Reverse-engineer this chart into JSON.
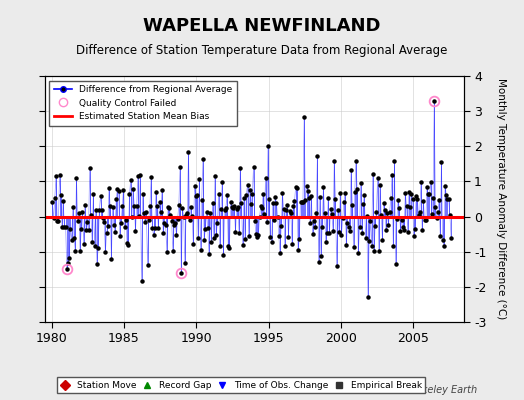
{
  "title": "WAPELLA NEWFINLAND",
  "subtitle": "Difference of Station Temperature Data from Regional Average",
  "ylabel": "Monthly Temperature Anomaly Difference (°C)",
  "xlabel_ticks": [
    1980,
    1985,
    1990,
    1995,
    2000,
    2005
  ],
  "xlim": [
    1979.5,
    2008.5
  ],
  "ylim": [
    -3,
    4
  ],
  "yticks": [
    -3,
    -2,
    -1,
    0,
    1,
    2,
    3,
    4
  ],
  "bias_line": 0.0,
  "bias_color": "#ff0000",
  "series_color": "#0000ff",
  "dot_color": "#000000",
  "background_color": "#ebebeb",
  "plot_bg_color": "#ffffff",
  "watermark": "Berkeley Earth",
  "seed": 42
}
